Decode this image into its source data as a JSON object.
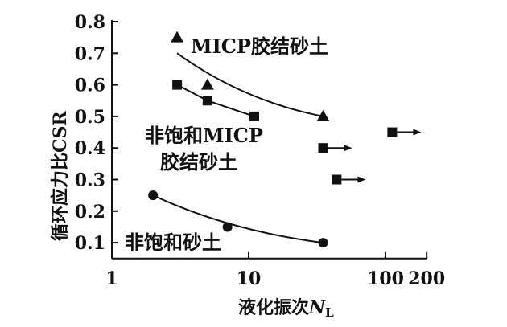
{
  "chart_data": {
    "type": "scatter",
    "xlabel": "液化振次",
    "xlabel_var": "N",
    "xlabel_sub": "L",
    "ylabel": "循环应力比CSR",
    "xscale": "log",
    "xlim": [
      1,
      200
    ],
    "ylim": [
      0.05,
      0.8
    ],
    "xticks": [
      1,
      10,
      100,
      200
    ],
    "xtick_labels": [
      "1",
      "10",
      "100",
      "200"
    ],
    "yticks": [
      0.1,
      0.2,
      0.3,
      0.4,
      0.5,
      0.6,
      0.7,
      0.8
    ],
    "ytick_labels": [
      "0.1",
      "0.2",
      "0.3",
      "0.4",
      "0.5",
      "0.6",
      "0.7",
      "0.8"
    ],
    "grid": false,
    "series": [
      {
        "name": "MICP胶结砂土",
        "marker": "triangle",
        "points": [
          [
            3,
            0.75
          ],
          [
            5,
            0.6
          ],
          [
            35,
            0.5
          ]
        ],
        "fit": [
          [
            3,
            0.7
          ],
          [
            35,
            0.5
          ]
        ]
      },
      {
        "name": "非饱和MICP胶结砂土",
        "marker": "square",
        "points": [
          [
            3,
            0.6
          ],
          [
            5,
            0.55
          ],
          [
            11,
            0.5
          ]
        ],
        "fit": [
          [
            3,
            0.6
          ],
          [
            5,
            0.55
          ],
          [
            11,
            0.5
          ]
        ],
        "runout_points": [
          [
            35,
            0.4
          ],
          [
            44,
            0.3
          ],
          [
            112,
            0.45
          ]
        ]
      },
      {
        "name": "非饱和砂土",
        "marker": "circle",
        "points": [
          [
            2,
            0.25
          ],
          [
            7,
            0.15
          ],
          [
            35,
            0.1
          ]
        ],
        "fit": [
          [
            2,
            0.25
          ],
          [
            35,
            0.1
          ]
        ]
      }
    ],
    "annotations": [
      "MICP胶结砂土",
      "非饱和MICP",
      "胶结砂土",
      "非饱和砂土"
    ]
  }
}
